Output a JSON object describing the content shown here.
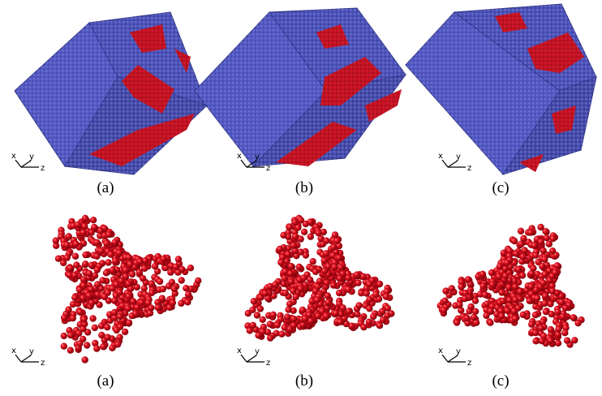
{
  "rows": [
    {
      "panels": [
        {
          "label": "(a)",
          "axes": {
            "x": "x",
            "y": "y",
            "z": "z"
          }
        },
        {
          "label": "(b)",
          "axes": {
            "x": "x",
            "y": "y",
            "z": "z"
          }
        },
        {
          "label": "(c)",
          "axes": {
            "x": "x",
            "y": "y",
            "z": "z"
          }
        }
      ]
    },
    {
      "panels": [
        {
          "label": "(a)",
          "axes": {
            "x": "x",
            "y": "y",
            "z": "z"
          }
        },
        {
          "label": "(b)",
          "axes": {
            "x": "x",
            "y": "y",
            "z": "z"
          }
        },
        {
          "label": "(c)",
          "axes": {
            "x": "x",
            "y": "y",
            "z": "z"
          }
        }
      ]
    }
  ]
}
